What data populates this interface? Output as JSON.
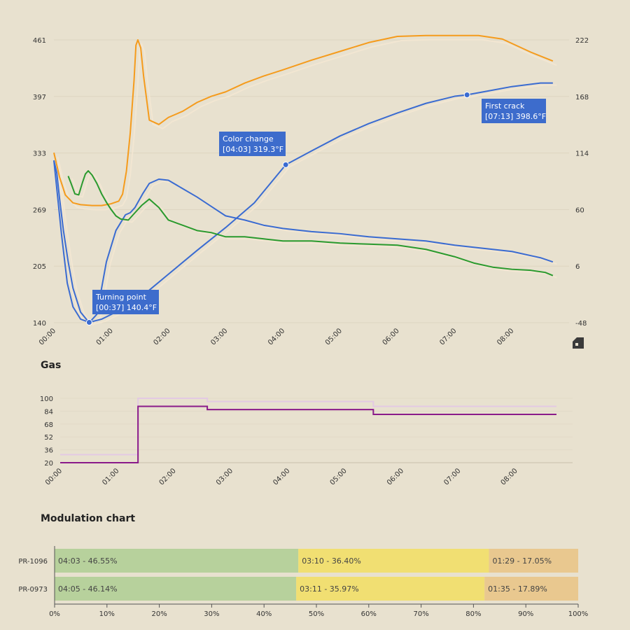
{
  "sections": {
    "gas_title": "Gas",
    "modulation_title": "Modulation chart"
  },
  "colors": {
    "bean_temp": "#3a6bd1",
    "env_temp": "#f59b1c",
    "ror_bean": "#3a6bd1",
    "ror_green": "#2a9a2e",
    "ghost": "#f3e7d2",
    "gas": "#8a1a8a",
    "drying": "#b7d19c",
    "maillard": "#f1df72",
    "development": "#e9c88f"
  },
  "chart_data": [
    {
      "type": "line",
      "title": "",
      "x_ticks": [
        "00:00",
        "01:00",
        "02:00",
        "03:00",
        "04:00",
        "05:00",
        "06:00",
        "07:00",
        "08:00"
      ],
      "xlim_seconds": [
        0,
        540
      ],
      "y_left_ticks": [
        "140",
        "205",
        "269",
        "333",
        "397",
        "461"
      ],
      "ylim_left": [
        140,
        461
      ],
      "y_right_ticks": [
        "-48",
        "6",
        "60",
        "114",
        "168",
        "222"
      ],
      "ylim_right": [
        -48,
        222
      ],
      "series": [
        {
          "axis": "left",
          "color": "bean_temp",
          "x": [
            0,
            8,
            14,
            20,
            28,
            37,
            50,
            65,
            80,
            100,
            120,
            150,
            180,
            210,
            243,
            270,
            300,
            330,
            360,
            390,
            420,
            433,
            450,
            480,
            510,
            523
          ],
          "y": [
            324,
            240,
            185,
            158,
            144,
            140.4,
            144,
            152,
            162,
            177,
            195,
            222,
            248,
            276,
            319.3,
            335,
            352,
            366,
            378,
            389,
            397,
            398.6,
            402,
            408,
            412,
            412
          ]
        },
        {
          "axis": "left",
          "color": "env_temp",
          "x": [
            0,
            6,
            12,
            20,
            28,
            40,
            50,
            60,
            68,
            72,
            76,
            80,
            84,
            86,
            88,
            91,
            94,
            100,
            110,
            120,
            135,
            150,
            165,
            180,
            200,
            220,
            240,
            270,
            300,
            330,
            360,
            390,
            420,
            445,
            470,
            500,
            523
          ],
          "y": [
            333,
            305,
            285,
            276,
            274,
            273,
            273,
            275,
            278,
            286,
            312,
            355,
            415,
            455,
            461,
            452,
            420,
            370,
            365,
            373,
            380,
            390,
            397,
            402,
            412,
            420,
            427,
            438,
            448,
            458,
            465,
            466,
            466,
            466,
            462,
            447,
            437
          ]
        },
        {
          "axis": "right",
          "color": "ror_bean",
          "x": [
            0,
            3,
            6,
            10,
            15,
            20,
            28,
            37,
            45,
            55,
            65,
            75,
            80,
            85,
            93,
            100,
            110,
            120,
            135,
            150,
            165,
            180,
            200,
            220,
            240,
            270,
            300,
            330,
            360,
            390,
            420,
            450,
            480,
            510,
            523
          ],
          "y": [
            107,
            95,
            70,
            40,
            10,
            -15,
            -38,
            -48,
            -40,
            10,
            40,
            55,
            57,
            62,
            75,
            85,
            89,
            88,
            80,
            72,
            63,
            54,
            50,
            45,
            42,
            39,
            37,
            34,
            32,
            30,
            26,
            23,
            20,
            14,
            10
          ]
        },
        {
          "axis": "right",
          "color": "ror_green",
          "x": [
            15,
            18,
            22,
            26,
            30,
            33,
            36,
            40,
            45,
            50,
            55,
            60,
            65,
            70,
            78,
            85,
            92,
            100,
            110,
            120,
            135,
            150,
            165,
            180,
            200,
            220,
            240,
            270,
            300,
            330,
            360,
            390,
            420,
            440,
            460,
            480,
            500,
            515,
            523
          ],
          "y": [
            92,
            85,
            75,
            74,
            86,
            94,
            97,
            93,
            85,
            75,
            67,
            60,
            54,
            51,
            50,
            57,
            64,
            70,
            62,
            50,
            45,
            40,
            38,
            34,
            34,
            32,
            30,
            30,
            28,
            27,
            26,
            22,
            15,
            9,
            5,
            3,
            2,
            0,
            -3
          ]
        }
      ]
    },
    {
      "type": "line",
      "title": "Gas",
      "x_ticks": [
        "00:00",
        "01:00",
        "02:00",
        "03:00",
        "04:00",
        "05:00",
        "06:00",
        "07:00",
        "08:00"
      ],
      "xlim_seconds": [
        0,
        540
      ],
      "y_ticks": [
        "20",
        "36",
        "52",
        "68",
        "84",
        "100"
      ],
      "ylim": [
        20,
        100
      ],
      "series": [
        {
          "color": "gas",
          "x": [
            0,
            75,
            75,
            82,
            82,
            100,
            100,
            155,
            155,
            170,
            170,
            325,
            325,
            330,
            330,
            333,
            333,
            345,
            345,
            390,
            390,
            405,
            405,
            415,
            415,
            420,
            420,
            435,
            435,
            475,
            475,
            480,
            480,
            485,
            485,
            495,
            495,
            510,
            510,
            523
          ],
          "y": [
            20,
            20,
            20,
            20,
            90,
            90,
            90,
            90,
            86,
            86,
            86,
            86,
            86,
            86,
            80,
            80,
            80,
            80,
            80,
            80,
            80,
            80,
            80,
            80,
            80,
            80,
            80,
            80,
            80,
            80,
            80,
            80,
            80,
            80,
            80,
            80,
            80,
            80,
            80,
            80
          ]
        }
      ]
    },
    {
      "type": "bar",
      "title": "Modulation chart",
      "orientation": "horizontal",
      "stacked": true,
      "categories": [
        "PR-1096",
        "PR-0973"
      ],
      "x_ticks": [
        "0%",
        "10%",
        "20%",
        "30%",
        "40%",
        "50%",
        "60%",
        "70%",
        "80%",
        "90%",
        "100%"
      ],
      "xlim": [
        0,
        100
      ],
      "series": [
        {
          "color": "drying",
          "values": [
            46.55,
            46.14
          ],
          "labels": [
            "04:03 - 46.55%",
            "04:05 - 46.14%"
          ]
        },
        {
          "color": "maillard",
          "values": [
            36.4,
            35.97
          ],
          "labels": [
            "03:10 - 36.40%",
            "03:11 - 35.97%"
          ]
        },
        {
          "color": "development",
          "values": [
            17.05,
            17.89
          ],
          "labels": [
            "01:29 - 17.05%",
            "01:35 - 17.89%"
          ]
        }
      ]
    }
  ],
  "annotations": [
    {
      "label": "Turning point",
      "value": "[00:37] 140.4°F",
      "x_seconds": 37,
      "y": 140.4
    },
    {
      "label": "Color change",
      "value": "[04:03] 319.3°F",
      "x_seconds": 243,
      "y": 319.3
    },
    {
      "label": "First crack",
      "value": "[07:13] 398.6°F",
      "x_seconds": 433,
      "y": 398.6
    }
  ],
  "logo": "roast-logo-icon"
}
